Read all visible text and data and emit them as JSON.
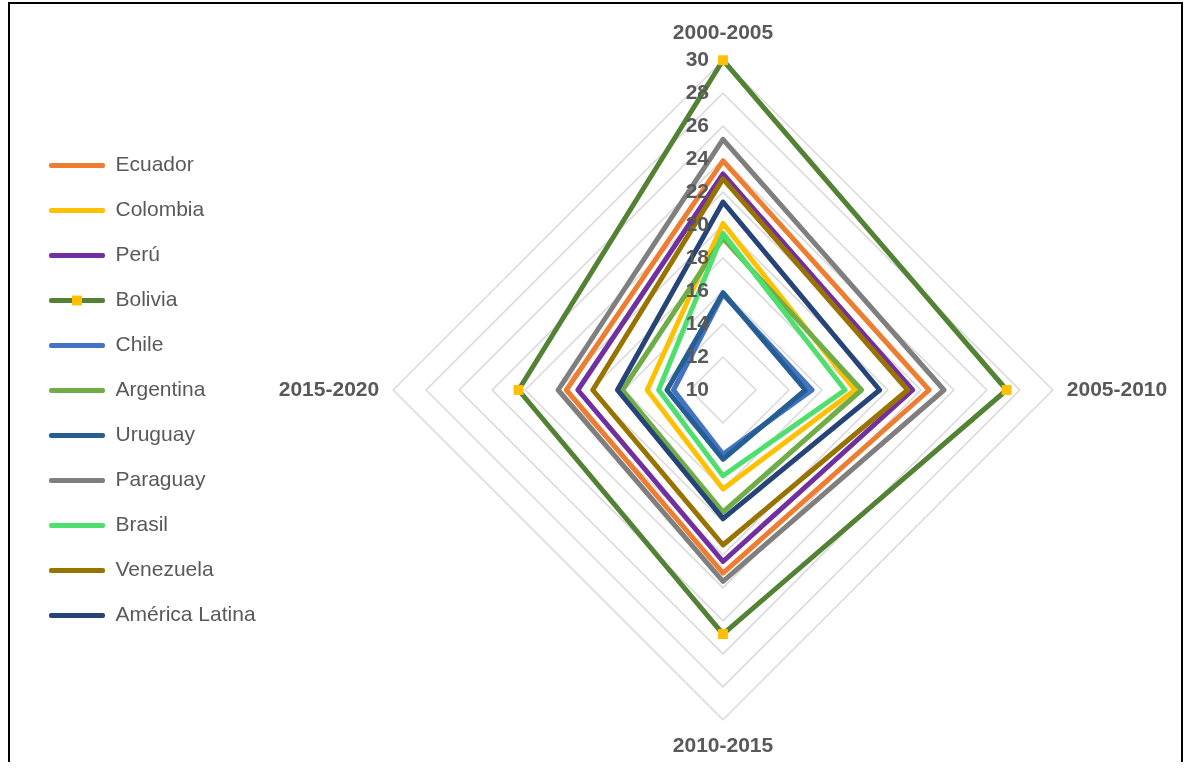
{
  "chart_data": {
    "type": "radar",
    "categories": [
      "2000-2005",
      "2005-2010",
      "2010-2015",
      "2015-2020"
    ],
    "ylim": [
      10,
      30
    ],
    "yticks": [
      10,
      12,
      14,
      16,
      18,
      20,
      22,
      24,
      26,
      28,
      30
    ],
    "grid": true,
    "legend": "left",
    "series": [
      {
        "name": "Ecuador",
        "color": "#ed7d31",
        "values": [
          23.9,
          22.5,
          21.1,
          19.5
        ]
      },
      {
        "name": "Colombia",
        "color": "#ffc000",
        "values": [
          20.1,
          18.0,
          16.0,
          14.6
        ]
      },
      {
        "name": "Perú",
        "color": "#7030a0",
        "values": [
          23.1,
          21.5,
          20.4,
          18.8
        ]
      },
      {
        "name": "Bolivia",
        "color": "#548235",
        "marker": "square",
        "colors": [
          "#ffc000",
          "#ffc000",
          "#ffc000",
          "#ffc000"
        ],
        "values": [
          30.0,
          27.2,
          24.8,
          22.4
        ]
      },
      {
        "name": "Chile",
        "color": "#4472c4",
        "values": [
          15.8,
          15.4,
          13.9,
          13.0
        ]
      },
      {
        "name": "Argentina",
        "color": "#70ad47",
        "values": [
          19.2,
          18.4,
          17.4,
          16.1
        ]
      },
      {
        "name": "Uruguay",
        "color": "#255e91",
        "values": [
          15.9,
          15.0,
          14.2,
          13.4
        ]
      },
      {
        "name": "Paraguay",
        "color": "#7f7f7f",
        "values": [
          25.2,
          23.4,
          21.6,
          20.0
        ]
      },
      {
        "name": "Brasil",
        "color": "#4fdf6f",
        "values": [
          19.5,
          17.4,
          15.2,
          13.9
        ]
      },
      {
        "name": "Venezuela",
        "color": "#997300",
        "values": [
          22.8,
          21.2,
          19.4,
          17.9
        ]
      },
      {
        "name": "América Latina",
        "color": "#264478",
        "values": [
          21.4,
          19.5,
          17.8,
          16.4
        ]
      }
    ]
  }
}
